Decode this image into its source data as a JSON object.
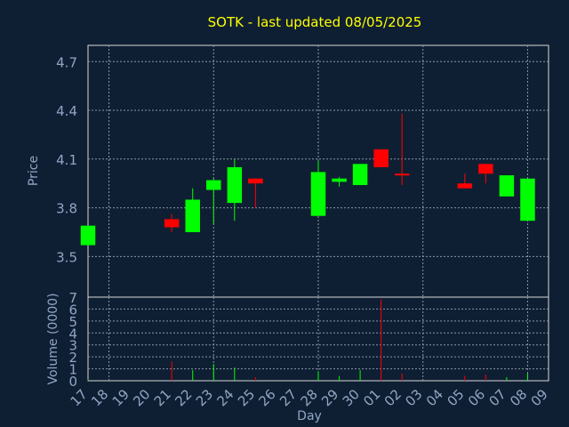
{
  "colors": {
    "background": "#0f1f33",
    "plot_background": "#0f1f33",
    "frame": "#d8d8d8",
    "grid": "#8a98a8",
    "axis_text": "#8fa6c4",
    "title": "#ffff00",
    "up": "#00ff00",
    "down": "#ff0000"
  },
  "chart_data": [
    {
      "type": "candlestick",
      "title": "SOTK - last updated 08/05/2025",
      "ylabel": "Price",
      "ylim": [
        3.25,
        4.8
      ],
      "yticks": [
        "3.5",
        "3.8",
        "4.1",
        "4.4",
        "4.7"
      ],
      "ytick_values": [
        3.5,
        3.8,
        4.1,
        4.4,
        4.7
      ],
      "grid": true,
      "x": [
        "17",
        "18",
        "19",
        "20",
        "21",
        "22",
        "23",
        "24",
        "25",
        "26",
        "27",
        "28",
        "29",
        "30",
        "01",
        "02",
        "03",
        "04",
        "05",
        "06",
        "07",
        "08",
        "09"
      ],
      "candles": [
        {
          "x": "17",
          "open": 3.57,
          "high": 3.69,
          "low": 3.57,
          "close": 3.69
        },
        {
          "x": "21",
          "open": 3.73,
          "high": 3.76,
          "low": 3.65,
          "close": 3.68
        },
        {
          "x": "22",
          "open": 3.65,
          "high": 3.92,
          "low": 3.65,
          "close": 3.85
        },
        {
          "x": "23",
          "open": 3.91,
          "high": 3.98,
          "low": 3.7,
          "close": 3.97
        },
        {
          "x": "24",
          "open": 3.83,
          "high": 4.1,
          "low": 3.72,
          "close": 4.05
        },
        {
          "x": "25",
          "open": 3.98,
          "high": 3.98,
          "low": 3.8,
          "close": 3.95
        },
        {
          "x": "28",
          "open": 3.75,
          "high": 4.09,
          "low": 3.75,
          "close": 4.02
        },
        {
          "x": "29",
          "open": 3.96,
          "high": 3.99,
          "low": 3.93,
          "close": 3.98
        },
        {
          "x": "30",
          "open": 3.94,
          "high": 4.07,
          "low": 3.94,
          "close": 4.07
        },
        {
          "x": "01",
          "open": 4.16,
          "high": 4.16,
          "low": 4.05,
          "close": 4.05
        },
        {
          "x": "02",
          "open": 4.01,
          "high": 4.38,
          "low": 3.94,
          "close": 4.0
        },
        {
          "x": "05",
          "open": 3.95,
          "high": 4.01,
          "low": 3.92,
          "close": 3.92
        },
        {
          "x": "06",
          "open": 4.07,
          "high": 4.07,
          "low": 3.95,
          "close": 4.01
        },
        {
          "x": "07",
          "open": 3.87,
          "high": 4.0,
          "low": 3.87,
          "close": 4.0
        },
        {
          "x": "08",
          "open": 3.72,
          "high": 3.98,
          "low": 3.72,
          "close": 3.98
        }
      ]
    },
    {
      "type": "bar",
      "ylabel": "Volume (0000)",
      "xlabel": "Day",
      "ylim": [
        0,
        7
      ],
      "yticks": [
        "0",
        "1",
        "2",
        "3",
        "4",
        "5",
        "6",
        "7"
      ],
      "x": [
        "17",
        "18",
        "19",
        "20",
        "21",
        "22",
        "23",
        "24",
        "25",
        "26",
        "27",
        "28",
        "29",
        "30",
        "01",
        "02",
        "03",
        "04",
        "05",
        "06",
        "07",
        "08",
        "09"
      ],
      "volume": [
        {
          "x": "17",
          "value": 0.1,
          "direction": "up"
        },
        {
          "x": "21",
          "value": 1.6,
          "direction": "down"
        },
        {
          "x": "22",
          "value": 0.9,
          "direction": "up"
        },
        {
          "x": "23",
          "value": 1.4,
          "direction": "up"
        },
        {
          "x": "24",
          "value": 1.1,
          "direction": "up"
        },
        {
          "x": "25",
          "value": 0.3,
          "direction": "down"
        },
        {
          "x": "28",
          "value": 0.8,
          "direction": "up"
        },
        {
          "x": "29",
          "value": 0.4,
          "direction": "up"
        },
        {
          "x": "30",
          "value": 0.9,
          "direction": "up"
        },
        {
          "x": "01",
          "value": 6.8,
          "direction": "down"
        },
        {
          "x": "02",
          "value": 0.6,
          "direction": "down"
        },
        {
          "x": "05",
          "value": 0.4,
          "direction": "down"
        },
        {
          "x": "06",
          "value": 0.5,
          "direction": "down"
        },
        {
          "x": "07",
          "value": 0.3,
          "direction": "up"
        },
        {
          "x": "08",
          "value": 0.6,
          "direction": "up"
        }
      ]
    }
  ]
}
